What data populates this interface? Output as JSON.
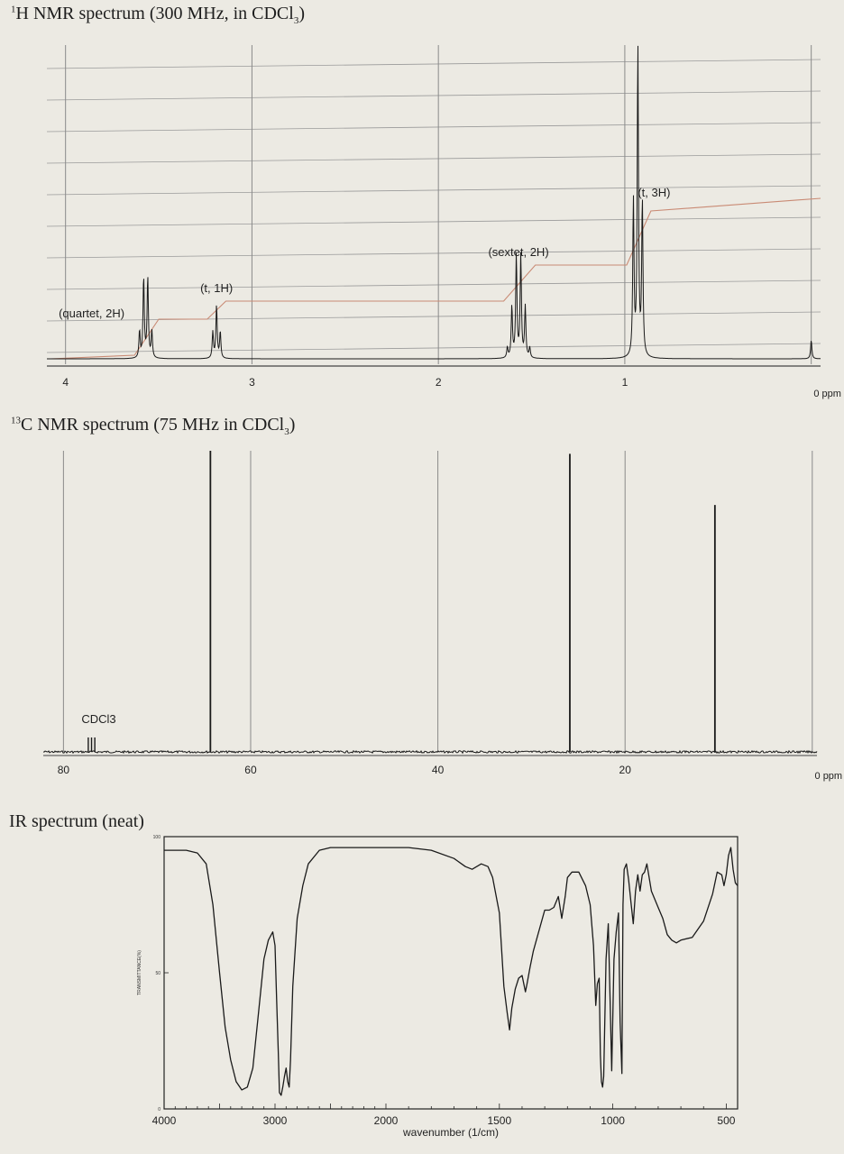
{
  "chart_data": [
    {
      "type": "line",
      "title": {
        "prefix": "1",
        "main": "H NMR spectrum (300 MHz, in CDCl",
        "sub": "3",
        "end": ")"
      },
      "xlabel": "ppm",
      "xlim": [
        4.1,
        -0.05
      ],
      "x_ticks": [
        {
          "value": 4,
          "label": "4"
        },
        {
          "value": 3,
          "label": "3"
        },
        {
          "value": 2,
          "label": "2"
        },
        {
          "value": 1,
          "label": "1"
        },
        {
          "value": 0,
          "label": "0 ppm"
        }
      ],
      "grid": true,
      "peaks": [
        {
          "label": "(quartet, 2H)",
          "center": 3.57,
          "multiplicity": 4,
          "spacing": 0.022,
          "height": 0.26
        },
        {
          "label": "(t, 1H)",
          "center": 3.19,
          "multiplicity": 3,
          "spacing": 0.02,
          "height": 0.17
        },
        {
          "label": "(sextet, 2H)",
          "center": 1.57,
          "multiplicity": 6,
          "spacing": 0.024,
          "height": 0.33
        },
        {
          "label": "(t, 3H)",
          "center": 0.93,
          "multiplicity": 3,
          "spacing": 0.024,
          "height": 1.0
        },
        {
          "label": "",
          "center": 0.0,
          "multiplicity": 1,
          "spacing": 0,
          "height": 0.06
        }
      ],
      "integration_steps": [
        {
          "from": 3.63,
          "to": 3.5,
          "level": 2
        },
        {
          "from": 3.24,
          "to": 3.14,
          "level": 3
        },
        {
          "from": 1.65,
          "to": 1.48,
          "level": 5
        },
        {
          "from": 0.99,
          "to": 0.86,
          "level": 8
        }
      ]
    },
    {
      "type": "line",
      "title": {
        "prefix": "13",
        "main": "C NMR spectrum (75 MHz in CDCl",
        "sub": "3",
        "end": ")"
      },
      "xlabel": "ppm",
      "xlim": [
        81,
        -0.5
      ],
      "x_ticks": [
        {
          "value": 80,
          "label": "80"
        },
        {
          "value": 60,
          "label": "60"
        },
        {
          "value": 40,
          "label": "40"
        },
        {
          "value": 20,
          "label": "20"
        },
        {
          "value": 0,
          "label": "0 ppm"
        }
      ],
      "grid": true,
      "peaks": [
        {
          "label": "CDCl3",
          "ppm": 77.0,
          "height": 0.15
        },
        {
          "label": "",
          "ppm": 64.3,
          "height": 1.0
        },
        {
          "label": "",
          "ppm": 25.9,
          "height": 0.99
        },
        {
          "label": "",
          "ppm": 10.4,
          "height": 0.82
        }
      ]
    },
    {
      "type": "line",
      "title": "IR spectrum (neat)",
      "xlabel": "wavenumber (1/cm)",
      "ylabel": "TRANSMITTANCE(%)",
      "xlim": [
        4000,
        450
      ],
      "ylim": [
        0,
        100
      ],
      "x_ticks": [
        4000,
        3000,
        2000,
        1500,
        1000,
        500
      ],
      "y_ticks": [
        {
          "value": 100,
          "label": "100"
        },
        {
          "value": 50,
          "label": "50"
        },
        {
          "value": 0,
          "label": "0"
        }
      ],
      "x": [
        4000,
        3800,
        3700,
        3620,
        3560,
        3500,
        3450,
        3400,
        3350,
        3300,
        3250,
        3200,
        3150,
        3100,
        3060,
        3020,
        3000,
        2985,
        2970,
        2960,
        2945,
        2930,
        2915,
        2900,
        2885,
        2872,
        2860,
        2840,
        2800,
        2750,
        2700,
        2600,
        2500,
        2400,
        2300,
        2200,
        2100,
        2000,
        1900,
        1800,
        1700,
        1650,
        1620,
        1580,
        1550,
        1530,
        1500,
        1480,
        1465,
        1455,
        1445,
        1430,
        1415,
        1400,
        1385,
        1378,
        1365,
        1350,
        1300,
        1280,
        1260,
        1240,
        1225,
        1210,
        1200,
        1180,
        1150,
        1120,
        1100,
        1085,
        1075,
        1068,
        1060,
        1055,
        1050,
        1045,
        1040,
        1030,
        1020,
        1012,
        1005,
        995,
        985,
        975,
        968,
        960,
        955,
        950,
        940,
        930,
        920,
        910,
        900,
        890,
        880,
        870,
        860,
        850,
        830,
        800,
        780,
        760,
        740,
        720,
        700,
        650,
        600,
        560,
        540,
        520,
        510,
        500,
        490,
        480,
        470,
        460,
        450
      ],
      "y": [
        95,
        95,
        94,
        90,
        75,
        50,
        30,
        18,
        10,
        7,
        8,
        15,
        35,
        55,
        62,
        65,
        60,
        40,
        20,
        6,
        5,
        8,
        12,
        15,
        10,
        8,
        18,
        45,
        70,
        82,
        90,
        95,
        96,
        96,
        96,
        96,
        96,
        96,
        96,
        95,
        92,
        89,
        88,
        90,
        89,
        85,
        72,
        45,
        35,
        29,
        37,
        44,
        48,
        49,
        43,
        46,
        52,
        58,
        73,
        73,
        74,
        78,
        70,
        78,
        85,
        87,
        87,
        82,
        75,
        60,
        38,
        46,
        48,
        20,
        10,
        8,
        12,
        55,
        68,
        40,
        14,
        55,
        65,
        72,
        32,
        13,
        75,
        88,
        90,
        84,
        76,
        68,
        80,
        86,
        80,
        86,
        87,
        90,
        80,
        74,
        70,
        64,
        62,
        61,
        62,
        63,
        69,
        79,
        87,
        86,
        82,
        86,
        93,
        96,
        88,
        83,
        82
      ],
      "grid": false
    }
  ]
}
